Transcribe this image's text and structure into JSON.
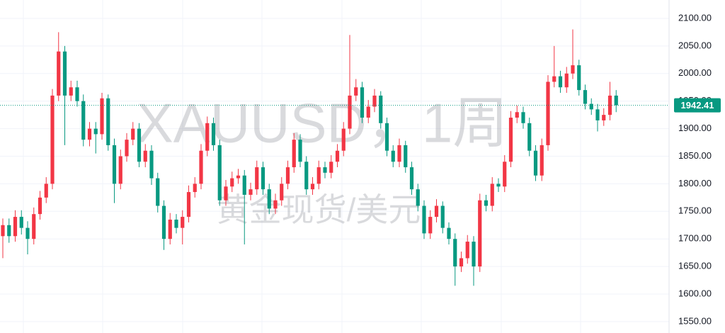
{
  "chart_data": {
    "type": "candlestick",
    "watermark": [
      "XAUUSD，1周",
      "黄金现货/美元"
    ],
    "up_color": "#f23645",
    "down_color": "#089981",
    "grid": true,
    "ylim": [
      1529.3,
      2133.4
    ],
    "yticks": [
      {
        "value": 1550,
        "label": "1550.00"
      },
      {
        "value": 1600,
        "label": "1600.00"
      },
      {
        "value": 1650,
        "label": "1650.00"
      },
      {
        "value": 1700,
        "label": "1700.00"
      },
      {
        "value": 1750,
        "label": "1750.00"
      },
      {
        "value": 1800,
        "label": "1800.00"
      },
      {
        "value": 1850,
        "label": "1850.00"
      },
      {
        "value": 1900,
        "label": "1900.00"
      },
      {
        "value": 1950,
        "label": "1950.00"
      },
      {
        "value": 2000,
        "label": "2000.00"
      },
      {
        "value": 2050,
        "label": "2050.00"
      },
      {
        "value": 2100,
        "label": "2100.00"
      }
    ],
    "open": [
      1705,
      1725,
      1705,
      1740,
      1720,
      1700,
      1745,
      1775,
      1800,
      1960,
      2040,
      1960,
      1975,
      1950,
      1880,
      1900,
      1890,
      1955,
      1870,
      1800,
      1850,
      1880,
      1900,
      1840,
      1860,
      1810,
      1760,
      1700,
      1735,
      1720,
      1740,
      1785,
      1800,
      1860,
      1910,
      1870,
      1770,
      1795,
      1810,
      1815,
      1780,
      1790,
      1830,
      1790,
      1755,
      1770,
      1800,
      1830,
      1880,
      1840,
      1790,
      1800,
      1830,
      1820,
      1840,
      1860,
      1900,
      1960,
      1975,
      1920,
      1940,
      1960,
      1910,
      1860,
      1840,
      1870,
      1830,
      1790,
      1760,
      1710,
      1740,
      1760,
      1720,
      1700,
      1650,
      1665,
      1695,
      1650,
      1770,
      1760,
      1800,
      1795,
      1840,
      1920,
      1930,
      1910,
      1860,
      1815,
      1870,
      1985,
      1995,
      1975,
      2000,
      2015,
      1970,
      1945,
      1935,
      1915,
      1925,
      1960
    ],
    "high": [
      1737,
      1737,
      1752,
      1752,
      1732,
      1757,
      1787,
      1812,
      1972,
      2075,
      2050,
      1987,
      1987,
      1962,
      1912,
      1912,
      1965,
      1962,
      1882,
      1862,
      1892,
      1912,
      1910,
      1872,
      1870,
      1820,
      1770,
      1747,
      1745,
      1752,
      1797,
      1812,
      1872,
      1922,
      1920,
      1880,
      1807,
      1822,
      1827,
      1825,
      1802,
      1842,
      1840,
      1800,
      1782,
      1812,
      1842,
      1892,
      1890,
      1850,
      1812,
      1842,
      1840,
      1852,
      1872,
      1912,
      2070,
      1990,
      1985,
      1952,
      1972,
      1968,
      1920,
      1870,
      1882,
      1878,
      1840,
      1800,
      1770,
      1752,
      1772,
      1768,
      1730,
      1710,
      1677,
      1707,
      1705,
      1782,
      1780,
      1812,
      1810,
      1852,
      1932,
      1942,
      1940,
      1920,
      1870,
      1882,
      1997,
      2050,
      2005,
      2012,
      2080,
      2025,
      1980,
      1955,
      1945,
      1937,
      1985,
      1970
    ],
    "low": [
      1665,
      1693,
      1695,
      1708,
      1672,
      1690,
      1735,
      1765,
      1790,
      1950,
      1870,
      1950,
      1940,
      1868,
      1868,
      1855,
      1880,
      1860,
      1765,
      1790,
      1840,
      1870,
      1830,
      1830,
      1798,
      1748,
      1680,
      1690,
      1710,
      1690,
      1730,
      1775,
      1790,
      1850,
      1860,
      1760,
      1760,
      1785,
      1800,
      1690,
      1770,
      1780,
      1780,
      1745,
      1745,
      1760,
      1790,
      1820,
      1830,
      1780,
      1780,
      1790,
      1810,
      1810,
      1830,
      1850,
      1890,
      1950,
      1910,
      1910,
      1930,
      1900,
      1850,
      1830,
      1830,
      1820,
      1780,
      1750,
      1700,
      1700,
      1730,
      1710,
      1690,
      1615,
      1640,
      1655,
      1615,
      1640,
      1750,
      1750,
      1785,
      1785,
      1830,
      1910,
      1900,
      1850,
      1805,
      1805,
      1860,
      1975,
      1965,
      1965,
      1990,
      1960,
      1935,
      1925,
      1895,
      1905,
      1915,
      1930
    ],
    "close": [
      1725,
      1705,
      1740,
      1720,
      1700,
      1745,
      1775,
      1800,
      1960,
      2040,
      1960,
      1975,
      1950,
      1880,
      1900,
      1890,
      1955,
      1870,
      1800,
      1850,
      1880,
      1900,
      1840,
      1860,
      1810,
      1760,
      1700,
      1735,
      1720,
      1740,
      1785,
      1800,
      1860,
      1910,
      1870,
      1770,
      1795,
      1810,
      1815,
      1780,
      1790,
      1830,
      1790,
      1755,
      1770,
      1800,
      1830,
      1880,
      1840,
      1790,
      1800,
      1830,
      1820,
      1840,
      1860,
      1900,
      1960,
      1975,
      1920,
      1940,
      1960,
      1910,
      1860,
      1840,
      1870,
      1830,
      1790,
      1760,
      1710,
      1740,
      1760,
      1720,
      1700,
      1650,
      1665,
      1695,
      1650,
      1770,
      1760,
      1800,
      1795,
      1840,
      1920,
      1930,
      1910,
      1860,
      1815,
      1870,
      1985,
      1995,
      1975,
      2000,
      2015,
      1970,
      1945,
      1935,
      1915,
      1925,
      1960,
      1942.41
    ]
  }
}
